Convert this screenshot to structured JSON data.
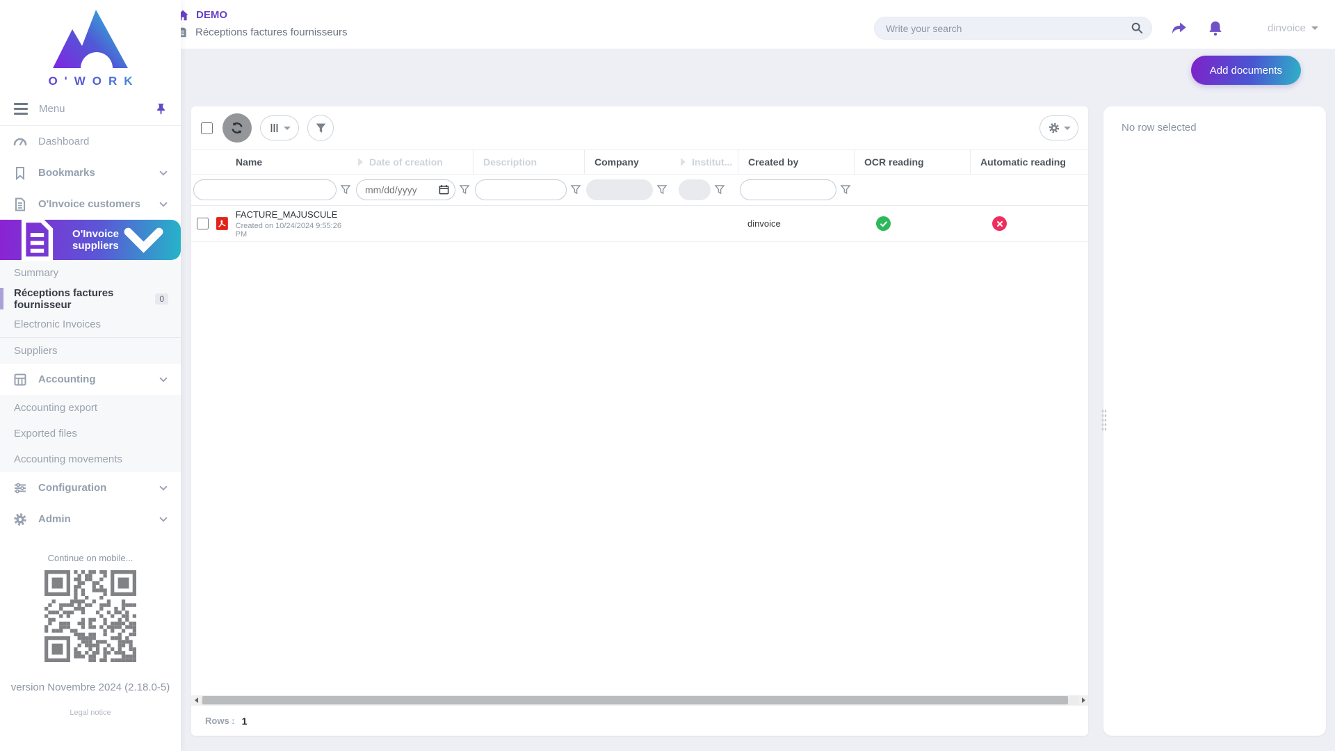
{
  "brand": {
    "name": "O'WORK"
  },
  "header": {
    "app_label": "DEMO",
    "breadcrumb": "Réceptions factures fournisseurs",
    "search_placeholder": "Write your search",
    "user": "dinvoice"
  },
  "actions": {
    "add_documents": "Add documents"
  },
  "sidebar": {
    "menu_label": "Menu",
    "items": {
      "dashboard": "Dashboard",
      "bookmarks": "Bookmarks",
      "oinvoice_customers": "O'Invoice customers",
      "oinvoice_suppliers": "O'Invoice suppliers",
      "accounting": "Accounting",
      "configuration": "Configuration",
      "admin": "Admin"
    },
    "suppliers_subitems": {
      "summary": "Summary",
      "receptions": "Réceptions factures fournisseur",
      "receptions_badge": "0",
      "electronic": "Electronic Invoices",
      "suppliers": "Suppliers"
    },
    "accounting_subitems": {
      "export": "Accounting export",
      "exported": "Exported files",
      "movements": "Accounting movements"
    },
    "mobile_hint": "Continue on mobile...",
    "version": "version Novembre 2024 (2.18.0-5)",
    "legal": "Legal notice"
  },
  "table": {
    "columns": [
      "Name",
      "Date of creation",
      "Description",
      "Company",
      "Institut...",
      "Created by",
      "OCR reading",
      "Automatic reading"
    ],
    "filters": {
      "date_placeholder": "mm/dd/yyyy"
    },
    "rows": [
      {
        "name": "FACTURE_MAJUSCULE",
        "created": "Created on 10/24/2024 9:55:26 PM",
        "created_by": "dinvoice",
        "ocr_reading": "success",
        "automatic_reading": "error"
      }
    ],
    "footer": {
      "rows_label": "Rows :",
      "rows_count": "1"
    }
  },
  "details_panel": {
    "empty_text": "No row selected"
  },
  "icons": {
    "home-icon": "house",
    "file-icon": "document",
    "search-icon": "magnifier",
    "share-icon": "forward-arrow",
    "bell-icon": "notification-bell",
    "menu-icon": "hamburger",
    "pin-icon": "pushpin",
    "dashboard-icon": "gauge",
    "bookmark-icon": "bookmark",
    "accounting-icon": "calculator",
    "configuration-icon": "sliders",
    "gear-icon": "gear",
    "refresh-icon": "circular-arrows",
    "columns-icon": "vertical-bars",
    "filter-icon": "funnel",
    "calendar-icon": "calendar",
    "pdf-icon": "pdf-file",
    "check-icon": "checkmark",
    "cross-icon": "x-mark"
  },
  "colors": {
    "accent_purple": "#6742c6",
    "gradient_from": "#8b22d3",
    "gradient_to": "#24b5c8",
    "success": "#2eb85c",
    "danger": "#ef2e5e",
    "pdf_red": "#e2231a"
  }
}
